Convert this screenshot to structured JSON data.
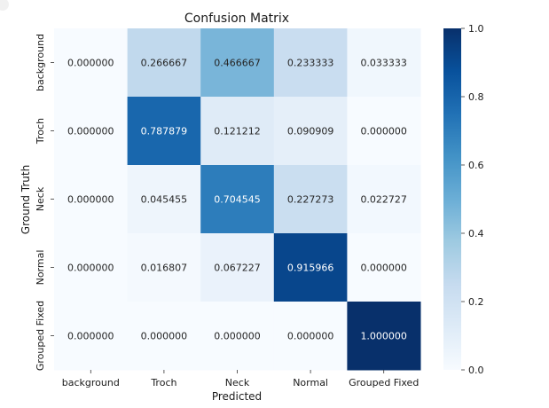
{
  "chart_data": {
    "type": "heatmap",
    "title": "Confusion Matrix",
    "xlabel": "Predicted",
    "ylabel": "Ground Truth",
    "x_categories": [
      "background",
      "Troch",
      "Neck",
      "Normal",
      "Grouped Fixed"
    ],
    "y_categories": [
      "background",
      "Troch",
      "Neck",
      "Normal",
      "Grouped Fixed"
    ],
    "values": [
      [
        0.0,
        0.266667,
        0.466667,
        0.233333,
        0.033333
      ],
      [
        0.0,
        0.787879,
        0.121212,
        0.090909,
        0.0
      ],
      [
        0.0,
        0.045455,
        0.704545,
        0.227273,
        0.022727
      ],
      [
        0.0,
        0.016807,
        0.067227,
        0.915966,
        0.0
      ],
      [
        0.0,
        0.0,
        0.0,
        0.0,
        1.0
      ]
    ],
    "value_labels": [
      [
        "0.000000",
        "0.266667",
        "0.466667",
        "0.233333",
        "0.033333"
      ],
      [
        "0.000000",
        "0.787879",
        "0.121212",
        "0.090909",
        "0.000000"
      ],
      [
        "0.000000",
        "0.045455",
        "0.704545",
        "0.227273",
        "0.022727"
      ],
      [
        "0.000000",
        "0.016807",
        "0.067227",
        "0.915966",
        "0.000000"
      ],
      [
        "0.000000",
        "0.000000",
        "0.000000",
        "0.000000",
        "1.000000"
      ]
    ],
    "colorbar": {
      "range": [
        0.0,
        1.0
      ],
      "ticks": [
        "0.0",
        "0.2",
        "0.4",
        "0.6",
        "0.8",
        "1.0"
      ],
      "colormap": "Blues",
      "color_low": "#f7fbff",
      "color_high": "#08306b"
    },
    "grid": false,
    "legend": "colorbar-right"
  }
}
